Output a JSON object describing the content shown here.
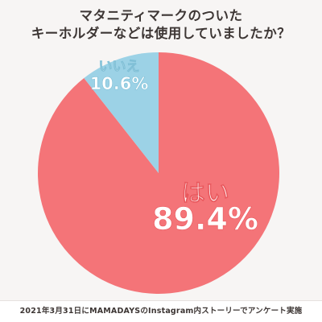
{
  "title_line1": "マタニティマークのついた",
  "title_line2": "キーホルダーなどは使用していましたか？",
  "footer": "2021年3月31日にMAMADAYSのInstagram内ストーリーでアンケート実施",
  "chart_data": {
    "type": "pie",
    "title": "マタニティマークのついたキーホルダーなどは使用していましたか？",
    "slices": [
      {
        "label": "はい",
        "value": 89.4,
        "value_label": "89.4%",
        "color": "#f47478"
      },
      {
        "label": "いいえ",
        "value": 10.6,
        "value_label": "10.6%",
        "color": "#9cd2e6"
      }
    ]
  }
}
